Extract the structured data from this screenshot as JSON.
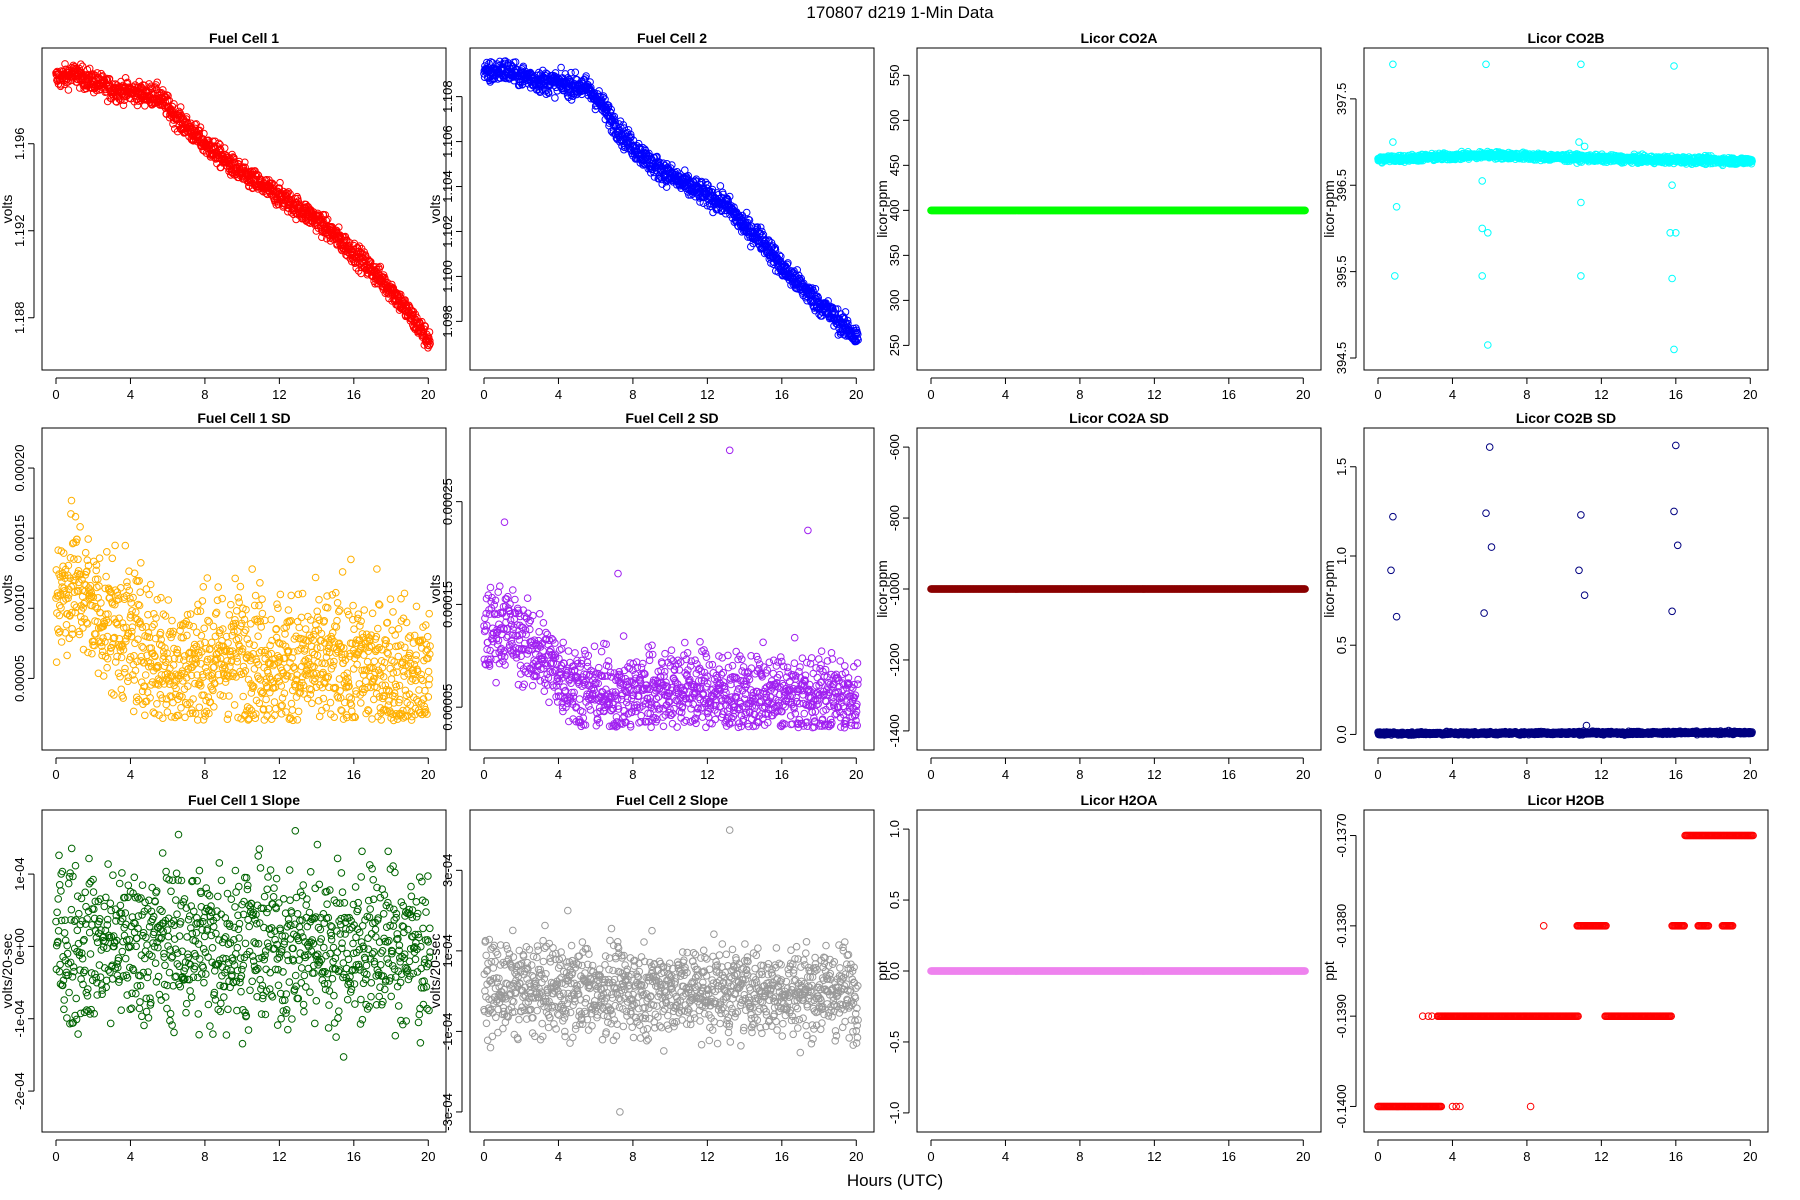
{
  "figure": {
    "title": "170807   d219   1-Min Data",
    "xlabel": "Hours (UTC)"
  },
  "chart_data": [
    {
      "id": "fc1",
      "type": "scatter",
      "title": "Fuel Cell 1",
      "ylabel": "volts",
      "color": "#ff0000",
      "xlim": [
        0,
        20.2
      ],
      "xticks": [
        0,
        4,
        8,
        12,
        16,
        20
      ],
      "ylim": [
        1.18615,
        1.19985
      ],
      "yticks": [
        1.188,
        1.192,
        1.196
      ],
      "ytick_labels": [
        "1.188",
        "1.192",
        "1.196"
      ],
      "trend": [
        [
          0,
          1.199
        ],
        [
          1,
          1.1992
        ],
        [
          3,
          1.1985
        ],
        [
          5.5,
          1.1982
        ],
        [
          6.5,
          1.1972
        ],
        [
          8,
          1.196
        ],
        [
          10,
          1.1946
        ],
        [
          12,
          1.1936
        ],
        [
          14,
          1.1925
        ],
        [
          16,
          1.191
        ],
        [
          18,
          1.1893
        ],
        [
          20,
          1.187
        ]
      ],
      "noise": 0.00025,
      "n": 1210
    },
    {
      "id": "fc2",
      "type": "scatter",
      "title": "Fuel Cell 2",
      "ylabel": "volts",
      "color": "#0000ff",
      "xlim": [
        0,
        20.2
      ],
      "xticks": [
        0,
        4,
        8,
        12,
        16,
        20
      ],
      "ylim": [
        1.09637,
        1.10963
      ],
      "yticks": [
        1.098,
        1.1,
        1.102,
        1.104,
        1.106,
        1.108
      ],
      "ytick_labels": [
        "1.098",
        "1.100",
        "1.102",
        "1.104",
        "1.106",
        "1.108"
      ],
      "trend": [
        [
          0,
          1.109
        ],
        [
          1,
          1.1092
        ],
        [
          3,
          1.1087
        ],
        [
          5.5,
          1.1084
        ],
        [
          6.2,
          1.1078
        ],
        [
          7.5,
          1.1062
        ],
        [
          9,
          1.105
        ],
        [
          11,
          1.104
        ],
        [
          12,
          1.1036
        ],
        [
          13,
          1.1032
        ],
        [
          14,
          1.1022
        ],
        [
          15,
          1.1016
        ],
        [
          16,
          1.1004
        ],
        [
          17,
          1.0996
        ],
        [
          18,
          1.0988
        ],
        [
          20,
          1.0973
        ]
      ],
      "noise": 0.00025,
      "n": 1210
    },
    {
      "id": "co2a",
      "type": "scatter",
      "title": "Licor CO2A",
      "ylabel": "licor-ppm",
      "color": "#00ff00",
      "xlim": [
        0,
        20.2
      ],
      "xticks": [
        0,
        4,
        8,
        12,
        16,
        20
      ],
      "ylim": [
        236,
        567
      ],
      "yticks": [
        250,
        300,
        350,
        400,
        450,
        500,
        550
      ],
      "ytick_labels": [
        "250",
        "300",
        "350",
        "400",
        "450",
        "500",
        "550"
      ],
      "constant": 400
    },
    {
      "id": "co2b",
      "type": "scatter",
      "title": "Licor CO2B",
      "ylabel": "licor-ppm",
      "color": "#00ffff",
      "xlim": [
        0,
        20.2
      ],
      "xticks": [
        0,
        4,
        8,
        12,
        16,
        20
      ],
      "ylim": [
        394.5,
        397.95
      ],
      "yticks": [
        394.5,
        395.5,
        396.5,
        397.5
      ],
      "ytick_labels": [
        "394.5",
        "395.5",
        "396.5",
        "397.5"
      ],
      "trend": [
        [
          0,
          396.8
        ],
        [
          6,
          396.85
        ],
        [
          10,
          396.82
        ],
        [
          14,
          396.8
        ],
        [
          20,
          396.78
        ]
      ],
      "noise": 0.02,
      "n": 1210,
      "outliers": [
        [
          0.8,
          397.9
        ],
        [
          0.8,
          397.0
        ],
        [
          1.0,
          396.25
        ],
        [
          0.9,
          395.45
        ],
        [
          5.8,
          397.9
        ],
        [
          5.6,
          396.55
        ],
        [
          5.6,
          396.0
        ],
        [
          5.9,
          395.95
        ],
        [
          5.6,
          395.45
        ],
        [
          5.9,
          394.65
        ],
        [
          10.9,
          397.9
        ],
        [
          10.8,
          397.0
        ],
        [
          11.1,
          396.95
        ],
        [
          10.9,
          396.3
        ],
        [
          10.9,
          395.45
        ],
        [
          15.9,
          397.88
        ],
        [
          15.8,
          396.5
        ],
        [
          15.7,
          395.95
        ],
        [
          16.0,
          395.95
        ],
        [
          15.8,
          395.42
        ],
        [
          15.9,
          394.6
        ]
      ]
    },
    {
      "id": "fc1sd",
      "type": "scatter",
      "title": "Fuel Cell 1 SD",
      "ylabel": "volts",
      "color": "#ffb000",
      "xlim": [
        0,
        20.2
      ],
      "xticks": [
        0,
        4,
        8,
        12,
        16,
        20
      ],
      "ylim": [
        7.5e-06,
        0.00022
      ],
      "yticks": [
        5e-05,
        0.0001,
        0.00015,
        0.0002
      ],
      "ytick_labels": [
        "0.00005",
        "0.00010",
        "0.00015",
        "0.00020"
      ],
      "trend": [
        [
          0,
          0.00011
        ],
        [
          1,
          0.00012
        ],
        [
          2,
          0.0001
        ],
        [
          4,
          8e-05
        ],
        [
          6,
          6e-05
        ],
        [
          8,
          6e-05
        ],
        [
          10,
          7e-05
        ],
        [
          12,
          6e-05
        ],
        [
          16,
          6e-05
        ],
        [
          20,
          5e-05
        ]
      ],
      "noise": 2.5e-05,
      "n": 1210,
      "floor": 2e-05
    },
    {
      "id": "fc2sd",
      "type": "scatter",
      "title": "Fuel Cell 2 SD",
      "ylabel": "volts",
      "color": "#a020f0",
      "xlim": [
        0,
        20.2
      ],
      "xticks": [
        0,
        4,
        8,
        12,
        16,
        20
      ],
      "ylim": [
        2e-05,
        0.00031
      ],
      "yticks": [
        5e-05,
        0.00015,
        0.00025
      ],
      "ytick_labels": [
        "0.00005",
        "0.00015",
        "0.00025"
      ],
      "trend": [
        [
          0,
          0.00012
        ],
        [
          1,
          0.00013
        ],
        [
          3,
          0.0001
        ],
        [
          5,
          7e-05
        ],
        [
          7,
          6e-05
        ],
        [
          10,
          7e-05
        ],
        [
          14,
          6e-05
        ],
        [
          20,
          6e-05
        ]
      ],
      "noise": 2e-05,
      "n": 1210,
      "floor": 3e-05,
      "outliers": [
        [
          13.2,
          0.0003
        ],
        [
          17.4,
          0.000222
        ],
        [
          7.2,
          0.00018
        ],
        [
          1.1,
          0.00023
        ]
      ]
    },
    {
      "id": "co2asd",
      "type": "scatter",
      "title": "Licor CO2A SD",
      "ylabel": "licor-ppm",
      "color": "#8b0000",
      "xlim": [
        0,
        20.2
      ],
      "xticks": [
        0,
        4,
        8,
        12,
        16,
        20
      ],
      "ylim": [
        -1420,
        -580
      ],
      "yticks": [
        -1400,
        -1200,
        -1000,
        -800,
        -600
      ],
      "ytick_labels": [
        "-1400",
        "-1200",
        "-1000",
        "-800",
        "-600"
      ],
      "constant": -1000
    },
    {
      "id": "co2bsd",
      "type": "scatter",
      "title": "Licor CO2B SD",
      "ylabel": "licor-ppm",
      "color": "#000080",
      "xlim": [
        0,
        20.2
      ],
      "xticks": [
        0,
        4,
        8,
        12,
        16,
        20
      ],
      "ylim": [
        -0.02,
        1.65
      ],
      "yticks": [
        0,
        0.5,
        1,
        1.5
      ],
      "ytick_labels": [
        "0.0",
        "0.5",
        "1.0",
        "1.5"
      ],
      "trend": [
        [
          0,
          0.005
        ],
        [
          20,
          0.01
        ]
      ],
      "noise": 0.004,
      "n": 1210,
      "outliers": [
        [
          0.8,
          1.22
        ],
        [
          0.7,
          0.92
        ],
        [
          1.0,
          0.66
        ],
        [
          5.8,
          1.24
        ],
        [
          6.0,
          1.61
        ],
        [
          6.1,
          1.05
        ],
        [
          5.7,
          0.68
        ],
        [
          10.9,
          1.23
        ],
        [
          10.8,
          0.92
        ],
        [
          11.1,
          0.78
        ],
        [
          15.9,
          1.25
        ],
        [
          16.0,
          1.62
        ],
        [
          16.1,
          1.06
        ],
        [
          15.8,
          0.69
        ],
        [
          11.2,
          0.05
        ]
      ]
    },
    {
      "id": "fc1slope",
      "type": "scatter",
      "title": "Fuel Cell 1 Slope",
      "ylabel": "volts/20-sec",
      "color": "#006400",
      "xlim": [
        0,
        20.2
      ],
      "xticks": [
        0,
        4,
        8,
        12,
        16,
        20
      ],
      "ylim": [
        -0.00024,
        0.000172
      ],
      "yticks": [
        -0.0002,
        -0.0001,
        0,
        0.0001
      ],
      "ytick_labels": [
        "-2e-04",
        "-1e-04",
        "0e+00",
        "1e-04"
      ],
      "trend": [
        [
          0,
          5e-06
        ],
        [
          20,
          0.0
        ]
      ],
      "noise": 5.5e-05,
      "n": 1000
    },
    {
      "id": "fc2slope",
      "type": "scatter",
      "title": "Fuel Cell 2 Slope",
      "ylabel": "volts/20-sec",
      "color": "#999999",
      "xlim": [
        0,
        20.2
      ],
      "xticks": [
        0,
        4,
        8,
        12,
        16,
        20
      ],
      "ylim": [
        -0.00032,
        0.00042
      ],
      "yticks": [
        -0.0003,
        -0.0001,
        0.0001,
        0.0003
      ],
      "ytick_labels": [
        "-3e-04",
        "-1e-04",
        "1e-04",
        "3e-04"
      ],
      "trend": [
        [
          0,
          5e-06
        ],
        [
          20,
          0.0
        ]
      ],
      "noise": 5.5e-05,
      "n": 1210,
      "outliers": [
        [
          13.2,
          0.0004
        ],
        [
          7.3,
          -0.0003
        ],
        [
          4.5,
          0.0002
        ]
      ]
    },
    {
      "id": "h2oa",
      "type": "scatter",
      "title": "Licor H2OA",
      "ylabel": "ppt",
      "color": "#ee82ee",
      "xlim": [
        0,
        20.2
      ],
      "xticks": [
        0,
        4,
        8,
        12,
        16,
        20
      ],
      "ylim": [
        -1.05,
        1.05
      ],
      "yticks": [
        -1,
        -0.5,
        0,
        0.5,
        1
      ],
      "ytick_labels": [
        "-1.0",
        "-0.5",
        "0.0",
        "0.5",
        "1.0"
      ],
      "constant": 0
    },
    {
      "id": "h2ob",
      "type": "scatter",
      "title": "Licor H2OB",
      "ylabel": "ppt",
      "color": "#ff0000",
      "xlim": [
        0,
        20.2
      ],
      "xticks": [
        0,
        4,
        8,
        12,
        16,
        20
      ],
      "ylim": [
        -0.14015,
        -0.13685
      ],
      "yticks": [
        -0.14,
        -0.139,
        -0.138,
        -0.137
      ],
      "ytick_labels": [
        "-0.1400",
        "-0.1390",
        "-0.1380",
        "-0.1370"
      ],
      "segments": [
        [
          0,
          3.4,
          -0.14
        ],
        [
          3.2,
          10.8,
          -0.139
        ],
        [
          10.7,
          12.3,
          -0.138
        ],
        [
          12.2,
          15.8,
          -0.139
        ],
        [
          15.8,
          16.5,
          -0.138
        ],
        [
          16.5,
          20.2,
          -0.137
        ],
        [
          17.2,
          17.8,
          -0.138
        ],
        [
          18.5,
          19.1,
          -0.138
        ]
      ],
      "extras": [
        [
          2.4,
          -0.139
        ],
        [
          2.7,
          -0.139
        ],
        [
          2.9,
          -0.139
        ],
        [
          4.0,
          -0.14
        ],
        [
          4.2,
          -0.14
        ],
        [
          4.4,
          -0.14
        ],
        [
          8.2,
          -0.14
        ],
        [
          8.9,
          -0.138
        ]
      ]
    }
  ]
}
